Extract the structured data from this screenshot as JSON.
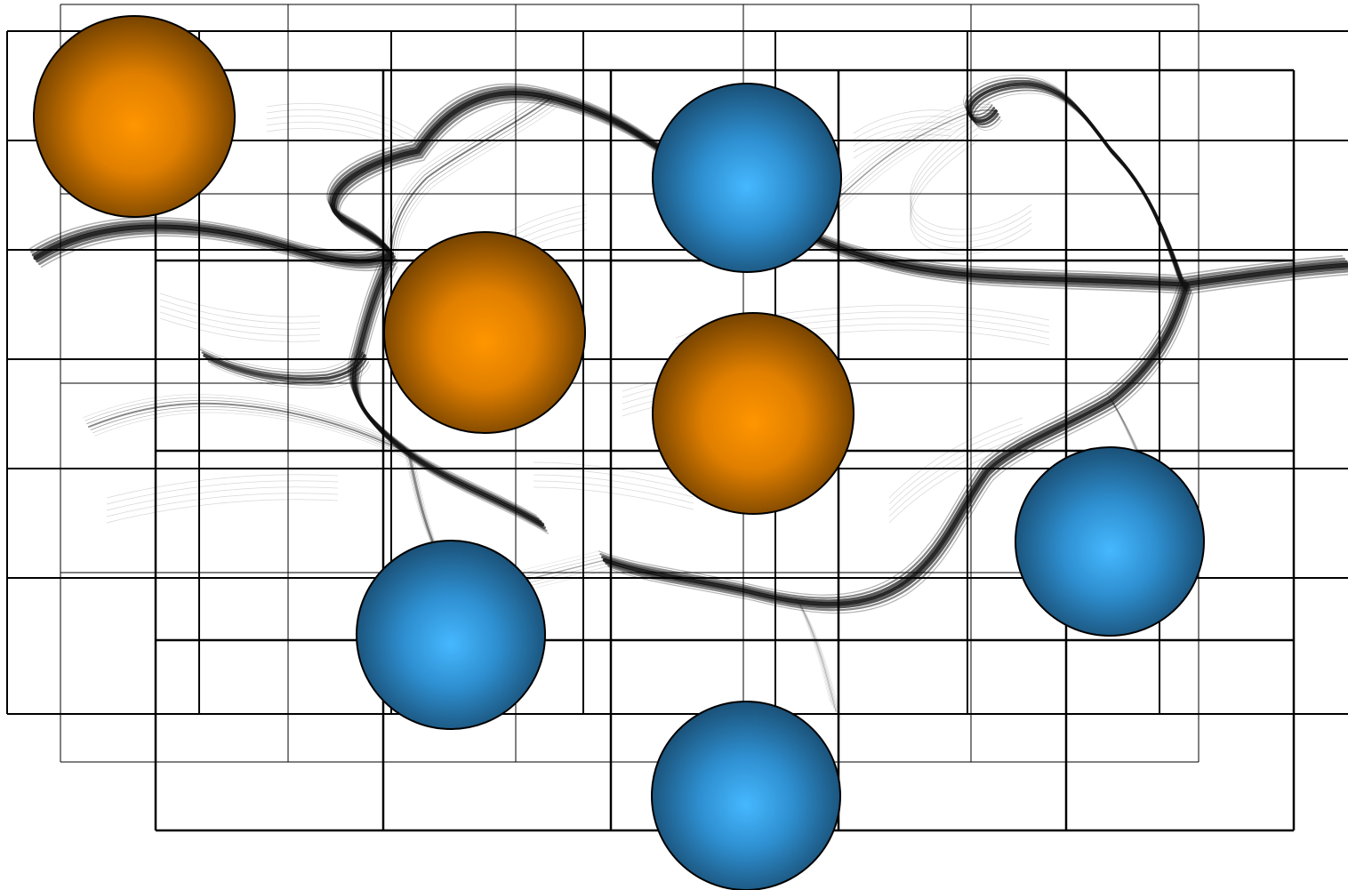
{
  "figure": {
    "background": "#ffffff",
    "flow_color": "#111111",
    "grid_color": "#000000"
  },
  "charges": [
    {
      "sign": "positive",
      "color": "#ff9500",
      "edge": "#6b3d00"
    },
    {
      "sign": "negative",
      "color": "#3fb0ff",
      "edge": "#184a6e"
    },
    {
      "sign": "positive",
      "color": "#ff9500",
      "edge": "#6b3d00"
    },
    {
      "sign": "positive",
      "color": "#ff9500",
      "edge": "#6b3d00"
    },
    {
      "sign": "negative",
      "color": "#3fb0ff",
      "edge": "#184a6e"
    },
    {
      "sign": "negative",
      "color": "#3fb0ff",
      "edge": "#184a6e"
    },
    {
      "sign": "negative",
      "color": "#3fb0ff",
      "edge": "#184a6e"
    }
  ]
}
